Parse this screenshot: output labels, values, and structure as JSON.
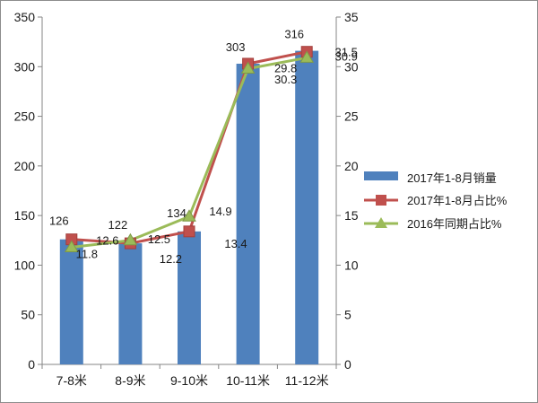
{
  "chart_data": {
    "type": "bar",
    "categories": [
      "7-8米",
      "8-9米",
      "9-10米",
      "10-11米",
      "11-12米"
    ],
    "series": [
      {
        "name": "2017年1-8月销量",
        "type": "bar",
        "axis": "left",
        "color": "#4f81bd",
        "values": [
          126,
          122,
          134,
          303,
          316
        ]
      },
      {
        "name": "2017年1-8月占比%",
        "type": "line",
        "marker": "square",
        "axis": "right",
        "color": "#c0504d",
        "values": [
          12.6,
          12.2,
          13.4,
          30.3,
          31.5
        ]
      },
      {
        "name": "2016年同期占比%",
        "type": "line",
        "marker": "triangle",
        "axis": "right",
        "color": "#9bbb59",
        "values": [
          11.8,
          12.5,
          14.9,
          29.8,
          30.9
        ]
      }
    ],
    "y_left": {
      "min": 0,
      "max": 350,
      "ticks": [
        0,
        50,
        100,
        150,
        200,
        250,
        300,
        350
      ]
    },
    "y_right": {
      "min": 0,
      "max": 35,
      "ticks": [
        0,
        5,
        10,
        15,
        20,
        25,
        30,
        35
      ]
    },
    "grid": false,
    "legend_position": "right"
  }
}
